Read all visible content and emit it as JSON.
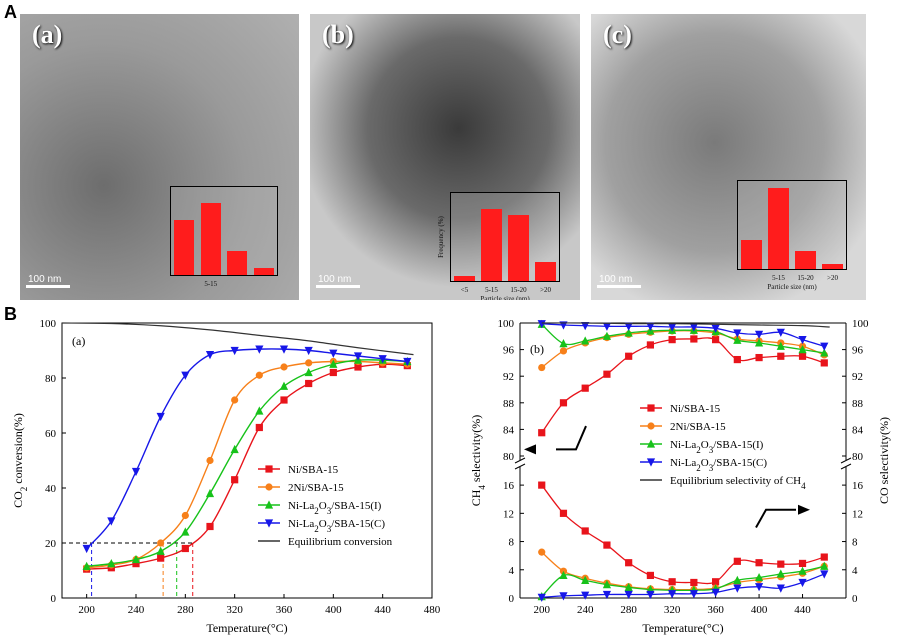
{
  "panel_labels": {
    "A": "A",
    "B": "B"
  },
  "tem_images": [
    {
      "tag": "(a)",
      "scale": "100 nm",
      "inset": {
        "xticks": [
          "",
          "5-15",
          "",
          ""
        ],
        "xlabel": "",
        "ylabel": "",
        "values": [
          0.62,
          0.82,
          0.27,
          0.08
        ]
      }
    },
    {
      "tag": "(b)",
      "scale": "100 nm",
      "inset": {
        "xticks": [
          "<5",
          "5-15",
          "15-20",
          ">20"
        ],
        "xlabel": "Particle size (nm)",
        "ylabel": "Frequency (%)",
        "values": [
          0.06,
          0.82,
          0.75,
          0.22
        ]
      }
    },
    {
      "tag": "(c)",
      "scale": "100 nm",
      "inset": {
        "xticks": [
          "",
          "5-15",
          "15-20",
          ">20"
        ],
        "xlabel": "Particle size (nm)",
        "ylabel": "",
        "values": [
          0.33,
          0.92,
          0.21,
          0.06
        ]
      }
    }
  ],
  "chart_data": [
    {
      "type": "line",
      "panel_tag": "(a)",
      "xlabel": "Temperature(°C)",
      "ylabel": "CO2 conversion(%)",
      "xlim": [
        180,
        480
      ],
      "ylim": [
        0,
        100
      ],
      "xticks": [
        200,
        240,
        280,
        320,
        360,
        400,
        440,
        480
      ],
      "yticks": [
        0,
        20,
        40,
        60,
        80,
        100
      ],
      "legend_position": "center-right",
      "series": [
        {
          "name": "Ni/SBA-15",
          "color": "#e8141b",
          "marker": "square",
          "x": [
            200,
            220,
            240,
            260,
            280,
            300,
            320,
            340,
            360,
            380,
            400,
            420,
            440,
            460
          ],
          "y": [
            10.5,
            11,
            12.5,
            14.5,
            18,
            26,
            43,
            62,
            72,
            78,
            82,
            84,
            85,
            84.5
          ]
        },
        {
          "name": "2Ni/SBA-15",
          "color": "#f7801a",
          "marker": "circle",
          "x": [
            200,
            220,
            240,
            260,
            280,
            300,
            320,
            340,
            360,
            380,
            400,
            420,
            440,
            460
          ],
          "y": [
            11,
            12,
            14,
            20,
            30,
            50,
            72,
            81,
            84,
            85.5,
            86,
            86,
            85.5,
            85
          ]
        },
        {
          "name": "Ni-La2O3/SBA-15(I)",
          "color": "#17c21a",
          "marker": "triangle-up",
          "x": [
            200,
            220,
            240,
            260,
            280,
            300,
            320,
            340,
            360,
            380,
            400,
            420,
            440,
            460
          ],
          "y": [
            11.5,
            12.5,
            14,
            17,
            24,
            38,
            54,
            68,
            77,
            82,
            85,
            86.5,
            86.5,
            86
          ]
        },
        {
          "name": "Ni-La2O3/SBA-15(C)",
          "color": "#1717e8",
          "marker": "triangle-down",
          "x": [
            200,
            220,
            240,
            260,
            280,
            300,
            320,
            340,
            360,
            380,
            400,
            420,
            440,
            460
          ],
          "y": [
            18,
            28,
            46,
            66,
            81,
            88.5,
            90,
            90.5,
            90.5,
            90,
            89,
            88,
            87,
            86
          ]
        },
        {
          "name": "Equilibrium conversion",
          "color": "#333333",
          "marker": "none",
          "x": [
            180,
            220,
            260,
            300,
            340,
            380,
            420,
            465
          ],
          "y": [
            100,
            99.8,
            99,
            97.5,
            95.5,
            93.5,
            91,
            88.5
          ]
        }
      ],
      "annotation_levels": {
        "y": 20,
        "x_marks": [
          204,
          262,
          273,
          286
        ]
      }
    },
    {
      "type": "line",
      "panel_tag": "(b)",
      "xlabel": "Temperature(°C)",
      "ylabel_left": "CH4 selectivity(%)",
      "ylabel_right": "CO selectivity(%)",
      "xlim": [
        180,
        480
      ],
      "xticks": [
        200,
        240,
        280,
        320,
        360,
        400,
        440
      ],
      "upper_ylim": [
        80,
        100
      ],
      "upper_yticks": [
        80,
        84,
        88,
        92,
        96,
        100
      ],
      "lower_ylim": [
        0,
        18
      ],
      "lower_yticks": [
        0,
        4,
        8,
        12,
        16
      ],
      "legend_position": "right",
      "series_ch4": [
        {
          "name": "Ni/SBA-15",
          "color": "#e8141b",
          "marker": "square",
          "x": [
            200,
            220,
            240,
            260,
            280,
            300,
            320,
            340,
            360,
            380,
            400,
            420,
            440,
            460
          ],
          "y": [
            83.5,
            88,
            90.2,
            92.3,
            95,
            96.7,
            97.5,
            97.6,
            97.5,
            94.5,
            94.8,
            95,
            95,
            94
          ]
        },
        {
          "name": "2Ni/SBA-15",
          "color": "#f7801a",
          "marker": "circle",
          "x": [
            200,
            220,
            240,
            260,
            280,
            300,
            320,
            340,
            360,
            380,
            400,
            420,
            440,
            460
          ],
          "y": [
            93.3,
            95.8,
            97,
            97.8,
            98.3,
            98.6,
            98.8,
            98.8,
            98.5,
            97.6,
            97.3,
            97,
            96.5,
            95.2
          ]
        },
        {
          "name": "Ni-La2O3/SBA-15(I)",
          "color": "#17c21a",
          "marker": "triangle-up",
          "x": [
            200,
            220,
            240,
            260,
            280,
            300,
            320,
            340,
            360,
            380,
            400,
            420,
            440,
            460
          ],
          "y": [
            99.8,
            96.9,
            97.3,
            98,
            98.5,
            98.8,
            98.9,
            98.9,
            98.7,
            97.4,
            97,
            96.5,
            96,
            95.5
          ]
        },
        {
          "name": "Ni-La2O3/SBA-15(C)",
          "color": "#1717e8",
          "marker": "triangle-down",
          "x": [
            200,
            220,
            240,
            260,
            280,
            300,
            320,
            340,
            360,
            380,
            400,
            420,
            440,
            460
          ],
          "y": [
            99.9,
            99.7,
            99.6,
            99.5,
            99.5,
            99.5,
            99.4,
            99.4,
            99.2,
            98.5,
            98.3,
            98.6,
            97.5,
            96.5
          ]
        },
        {
          "name": "Equilibrium selectivity of CH4",
          "color": "#333333",
          "marker": "none",
          "x": [
            200,
            240,
            280,
            320,
            360,
            400,
            440,
            465
          ],
          "y": [
            100,
            100,
            99.9,
            99.9,
            99.8,
            99.7,
            99.6,
            99.4
          ]
        }
      ],
      "series_co": [
        {
          "name": "Ni/SBA-15",
          "color": "#e8141b",
          "marker": "square",
          "x": [
            200,
            220,
            240,
            260,
            280,
            300,
            320,
            340,
            360,
            380,
            400,
            420,
            440,
            460
          ],
          "y": [
            16,
            12,
            9.5,
            7.5,
            5,
            3.2,
            2.3,
            2.2,
            2.3,
            5.2,
            5,
            4.8,
            4.9,
            5.8
          ]
        },
        {
          "name": "2Ni/SBA-15",
          "color": "#f7801a",
          "marker": "circle",
          "x": [
            200,
            220,
            240,
            260,
            280,
            300,
            320,
            340,
            360,
            380,
            400,
            420,
            440,
            460
          ],
          "y": [
            6.5,
            3.8,
            2.8,
            2.1,
            1.6,
            1.3,
            1.2,
            1.2,
            1.4,
            2.2,
            2.6,
            3,
            3.5,
            4.5
          ]
        },
        {
          "name": "Ni-La2O3/SBA-15(I)",
          "color": "#17c21a",
          "marker": "triangle-up",
          "x": [
            200,
            220,
            240,
            260,
            280,
            300,
            320,
            340,
            360,
            380,
            400,
            420,
            440,
            460
          ],
          "y": [
            0.2,
            3.2,
            2.5,
            1.9,
            1.5,
            1.2,
            1.1,
            1.1,
            1.3,
            2.5,
            2.9,
            3.4,
            3.8,
            4.5
          ]
        },
        {
          "name": "Ni-La2O3/SBA-15(C)",
          "color": "#1717e8",
          "marker": "triangle-down",
          "x": [
            200,
            220,
            240,
            260,
            280,
            300,
            320,
            340,
            360,
            380,
            400,
            420,
            440,
            460
          ],
          "y": [
            0.1,
            0.3,
            0.4,
            0.5,
            0.5,
            0.5,
            0.6,
            0.6,
            0.8,
            1.4,
            1.6,
            1.4,
            2.2,
            3.4
          ]
        }
      ]
    }
  ]
}
